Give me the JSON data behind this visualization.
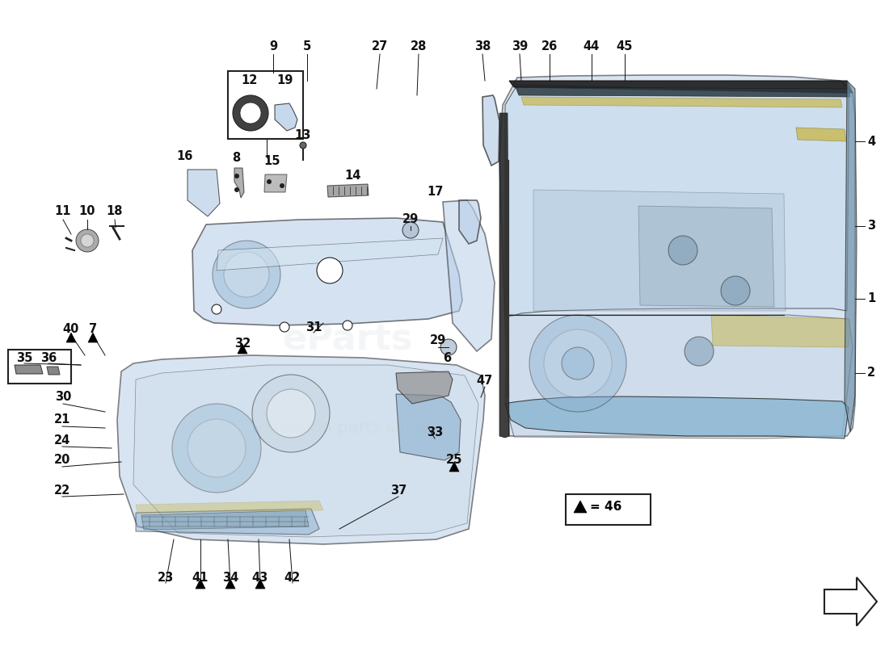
{
  "bg": "#ffffff",
  "lblue": "#b8cfe8",
  "mblue": "#8ab0d0",
  "dblue": "#4a7090",
  "outline": "#222222",
  "lc": "#111111",
  "yellow": "#c8b850",
  "lgray": "#d0d0d0",
  "mgray": "#909090",
  "darkgray": "#404040"
}
